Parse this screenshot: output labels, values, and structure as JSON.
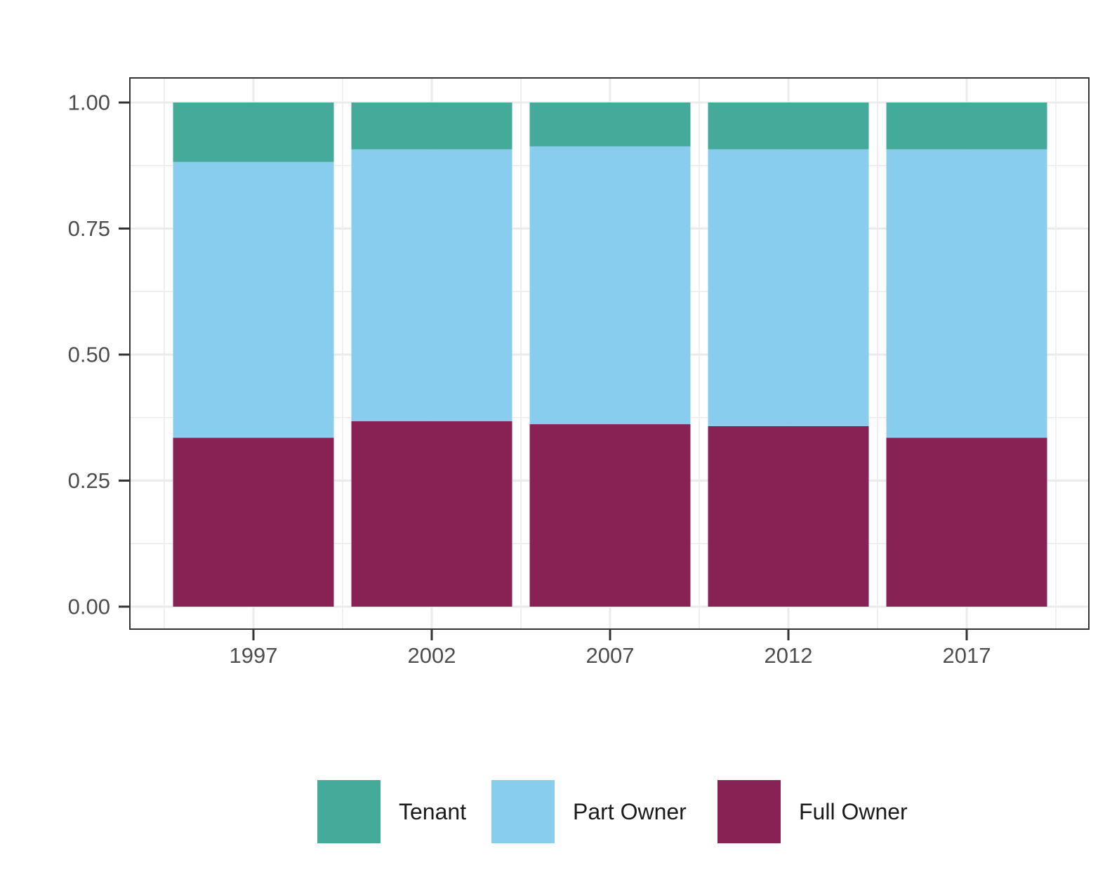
{
  "chart_data": {
    "type": "bar",
    "stacked": true,
    "title": "",
    "xlabel": "",
    "ylabel": "",
    "ylim": [
      0,
      1
    ],
    "yticks": [
      "0.00",
      "0.25",
      "0.50",
      "0.75",
      "1.00"
    ],
    "grid": true,
    "legend_position": "bottom",
    "categories": [
      "1997",
      "2002",
      "2007",
      "2012",
      "2017"
    ],
    "series": [
      {
        "name": "Full Owner",
        "color": "#882255",
        "values": [
          0.335,
          0.368,
          0.362,
          0.358,
          0.335
        ]
      },
      {
        "name": "Part Owner",
        "color": "#88CCEE",
        "values": [
          0.547,
          0.539,
          0.551,
          0.549,
          0.572
        ]
      },
      {
        "name": "Tenant",
        "color": "#44AA99",
        "values": [
          0.118,
          0.093,
          0.087,
          0.093,
          0.093
        ]
      }
    ],
    "legend": [
      "Tenant",
      "Part Owner",
      "Full Owner"
    ]
  }
}
